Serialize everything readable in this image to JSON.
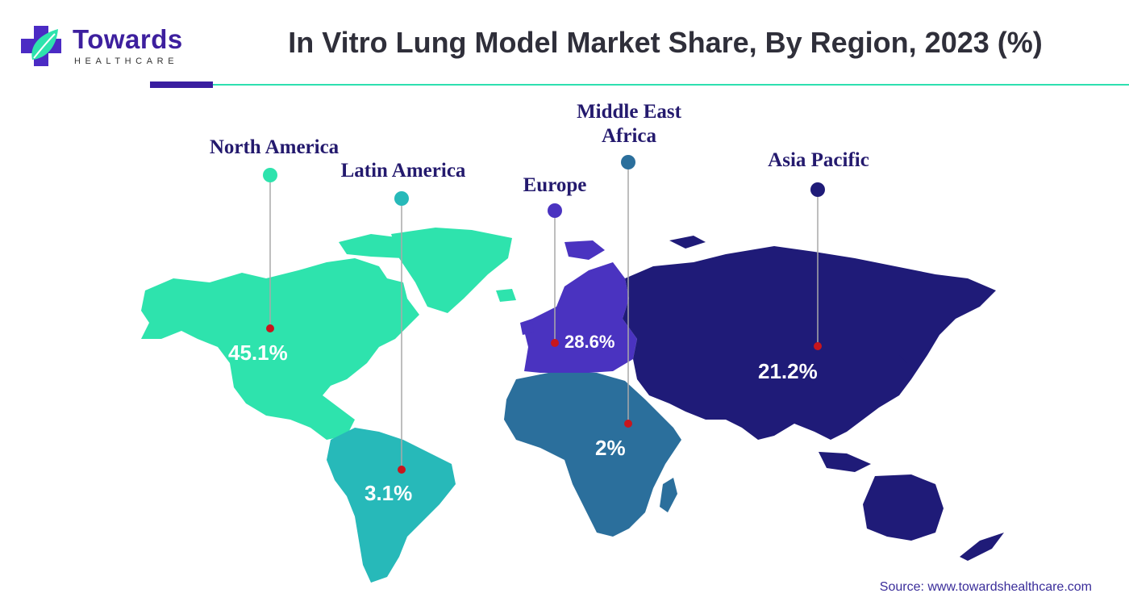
{
  "brand": {
    "name": "Towards",
    "sub": "HEALTHCARE"
  },
  "title": "In Vitro Lung Model Market Share, By Region, 2023 (%)",
  "regions": [
    {
      "key": "north_america",
      "name": "North America",
      "value": "45.1%",
      "color": "#2ee3ad"
    },
    {
      "key": "latin_america",
      "name": "Latin America",
      "value": "3.1%",
      "color": "#27b9b9"
    },
    {
      "key": "europe",
      "name": "Europe",
      "value": "28.6%",
      "color": "#4a33c0"
    },
    {
      "key": "mea",
      "name": "Middle East\nAfrica",
      "value": "2%",
      "color": "#2b6f9c"
    },
    {
      "key": "asia_pacific",
      "name": "Asia Pacific",
      "value": "21.2%",
      "color": "#1f1b78"
    }
  ],
  "source": "Source: www.towardshealthcare.com",
  "colors": {
    "marker": "#c8161d",
    "leader": "#a9a9a9"
  }
}
